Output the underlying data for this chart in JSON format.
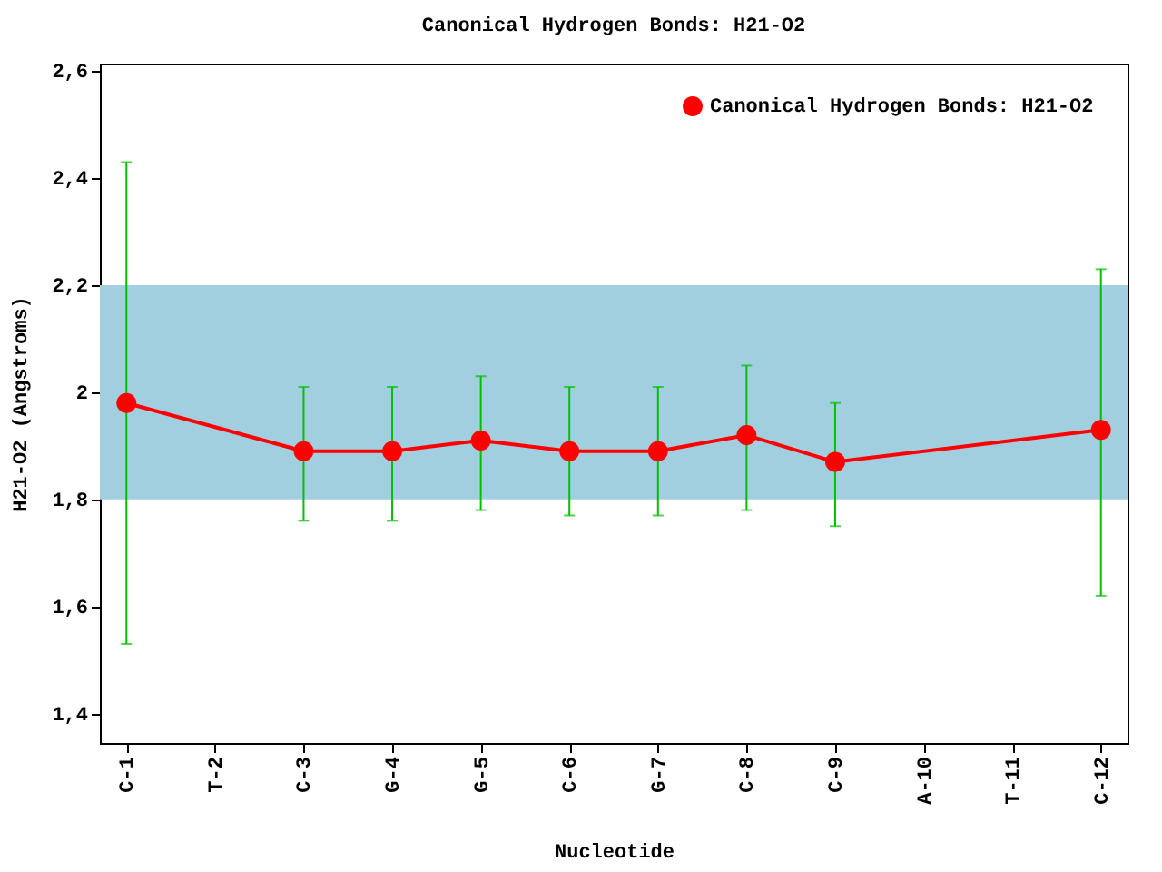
{
  "chart_data": {
    "type": "line",
    "title": "Canonical Hydrogen Bonds: H21-O2",
    "xlabel": "Nucleotide",
    "ylabel": "H21-O2 (Angstroms)",
    "categories": [
      "C-1",
      "T-2",
      "C-3",
      "G-4",
      "G-5",
      "C-6",
      "G-7",
      "C-8",
      "C-9",
      "A-10",
      "T-11",
      "C-12"
    ],
    "series": [
      {
        "name": "Canonical Hydrogen Bonds: H21-O2",
        "color": "#ff0000",
        "values": [
          1.98,
          null,
          1.89,
          1.89,
          1.91,
          1.89,
          1.89,
          1.92,
          1.87,
          null,
          null,
          1.93
        ],
        "errors": [
          [
            1.53,
            2.43
          ],
          null,
          [
            1.76,
            2.01
          ],
          [
            1.76,
            2.01
          ],
          [
            1.78,
            2.03
          ],
          [
            1.77,
            2.01
          ],
          [
            1.77,
            2.01
          ],
          [
            1.78,
            2.05
          ],
          [
            1.75,
            1.98
          ],
          null,
          null,
          [
            1.62,
            2.23
          ]
        ]
      }
    ],
    "ylim": [
      1.345,
      2.614
    ],
    "yticks": [
      {
        "value": 1.4,
        "label": "1,4"
      },
      {
        "value": 1.6,
        "label": "1,6"
      },
      {
        "value": 1.8,
        "label": "1,8"
      },
      2,
      {
        "value": 2.2,
        "label": "2,2"
      },
      {
        "value": 2.4,
        "label": "2,4"
      },
      {
        "value": 2.6,
        "label": "2,6"
      }
    ],
    "bands": [
      {
        "axis": "y",
        "from": 1.8,
        "to": 2.2,
        "color": "#a2cfdf"
      }
    ],
    "marker": "circle",
    "line_style": "solid",
    "legend": "top right",
    "grid": false
  }
}
